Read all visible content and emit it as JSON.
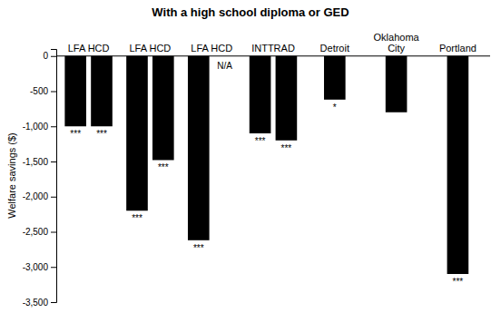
{
  "chart_data": {
    "type": "bar",
    "title": "With a high school diploma or GED",
    "y_label": "Welfare savings ($)",
    "categories": [
      "LFA HCD",
      "LFA HCD",
      "LFA HCD",
      "INTTRAD",
      "Detroit",
      "Oklahoma\nCity",
      "Portland"
    ],
    "series": [
      {
        "values": [
          -1000,
          -2200,
          -2620,
          -1100,
          -620,
          -800,
          -3100
        ],
        "annotations": [
          "***",
          "***",
          "***",
          "***",
          "*",
          null,
          "***"
        ]
      },
      {
        "values": [
          -1000,
          -1480,
          null,
          -1200,
          null,
          null,
          null
        ],
        "annotations": [
          "***",
          "***",
          "N/A",
          "***",
          null,
          null,
          null
        ]
      }
    ],
    "color": "#000000",
    "ylim": [
      -3500,
      100
    ],
    "yticks": [
      0,
      -500,
      {
        "value": -1000,
        "label": "-1,000"
      },
      {
        "value": -1500,
        "label": "-1,500"
      },
      {
        "value": -2000,
        "label": "-2,000"
      },
      {
        "value": -2500,
        "label": "-2,500"
      },
      {
        "value": -3000,
        "label": "-3,000"
      },
      {
        "value": -3500,
        "label": "-3,500"
      }
    ],
    "grid": false
  }
}
